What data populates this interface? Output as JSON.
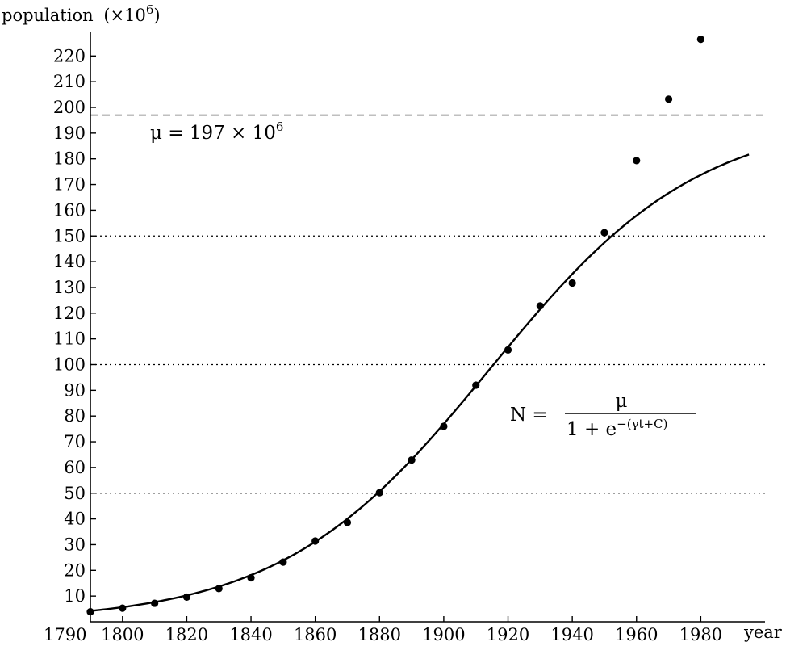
{
  "chart_data": {
    "type": "scatter",
    "ylabel": "population",
    "ylabel_unit": "(×10",
    "ylabel_unit_exp": "6",
    "ylabel_unit_close": ")",
    "xlabel": "year",
    "xlim": [
      1790,
      1995
    ],
    "ylim": [
      0,
      228
    ],
    "x_ticks": [
      1790,
      1800,
      1820,
      1840,
      1860,
      1880,
      1900,
      1920,
      1940,
      1960,
      1980
    ],
    "y_ticks": [
      10,
      20,
      30,
      40,
      50,
      60,
      70,
      80,
      90,
      100,
      110,
      120,
      130,
      140,
      150,
      160,
      170,
      180,
      190,
      200,
      210,
      220
    ],
    "grid": false,
    "series": [
      {
        "kind": "points",
        "x": [
          1790,
          1800,
          1810,
          1820,
          1830,
          1840,
          1850,
          1860,
          1870,
          1880,
          1890,
          1900,
          1910,
          1920,
          1930,
          1940,
          1950,
          1960,
          1970,
          1980
        ],
        "y": [
          3.9,
          5.3,
          7.2,
          9.6,
          12.9,
          17.1,
          23.2,
          31.4,
          38.6,
          50.2,
          62.9,
          76.0,
          92.0,
          105.7,
          122.8,
          131.7,
          151.3,
          179.3,
          203.2,
          226.5
        ]
      },
      {
        "kind": "curve",
        "model": "logistic",
        "mu": 197,
        "gamma": 0.0307,
        "t0": 1914.5
      }
    ],
    "reference_lines": [
      {
        "y": 197,
        "style": "dashed"
      },
      {
        "y": 150,
        "style": "dotted"
      },
      {
        "y": 100,
        "style": "dotted"
      },
      {
        "y": 50,
        "style": "dotted"
      }
    ],
    "annotations": {
      "mu_label": {
        "prefix": "μ = 197 × 10",
        "exp": "6"
      },
      "formula": {
        "lhs": "N =",
        "numerator": "μ",
        "denom_main": "1 + e",
        "denom_exp": "−(γt+C)"
      }
    }
  }
}
